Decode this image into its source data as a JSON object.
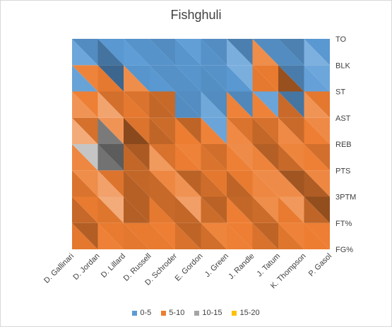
{
  "chart_data": {
    "type": "surface",
    "title": "Fishghuli",
    "x_categories": [
      "D. Gallinari",
      "D. Jordan",
      "D. Lillard",
      "D. Russell",
      "D. Schroder",
      "E. Gordon",
      "J. Green",
      "J. Randle",
      "J. Tatum",
      "K. Thompson",
      "P. Gasol"
    ],
    "y_categories": [
      "FG%",
      "FT%",
      "3PTM",
      "PTS",
      "REB",
      "AST",
      "ST",
      "BLK",
      "TO"
    ],
    "bands": [
      {
        "label": "0-5",
        "color": "#5b9bd5"
      },
      {
        "label": "5-10",
        "color": "#ed7d31"
      },
      {
        "label": "10-15",
        "color": "#a5a5a5"
      },
      {
        "label": "15-20",
        "color": "#ffc000"
      }
    ],
    "values": [
      [
        4,
        6,
        6,
        7,
        6,
        6,
        5,
        6,
        6,
        6,
        6
      ],
      [
        8,
        4,
        6,
        6,
        7,
        5,
        6,
        7,
        5,
        6,
        7
      ],
      [
        5,
        6,
        12,
        7,
        6,
        10,
        6,
        5,
        7,
        11,
        5
      ],
      [
        6,
        8,
        9,
        7,
        8,
        6,
        7,
        6,
        9,
        6,
        7
      ],
      [
        7,
        16,
        8,
        3,
        4,
        7,
        5,
        8,
        6,
        7,
        6
      ],
      [
        4,
        8,
        11,
        8,
        6,
        3,
        6,
        7,
        5,
        4,
        8
      ],
      [
        3,
        5,
        6,
        7,
        4,
        3,
        4,
        3,
        6,
        3,
        4
      ],
      [
        4,
        6,
        2,
        3,
        3,
        4,
        3,
        7,
        8,
        3,
        6
      ],
      [
        3,
        4,
        3,
        3,
        3,
        4,
        3,
        3,
        3,
        1,
        4
      ]
    ],
    "zlim": [
      0,
      20
    ],
    "legend_position": "bottom"
  }
}
